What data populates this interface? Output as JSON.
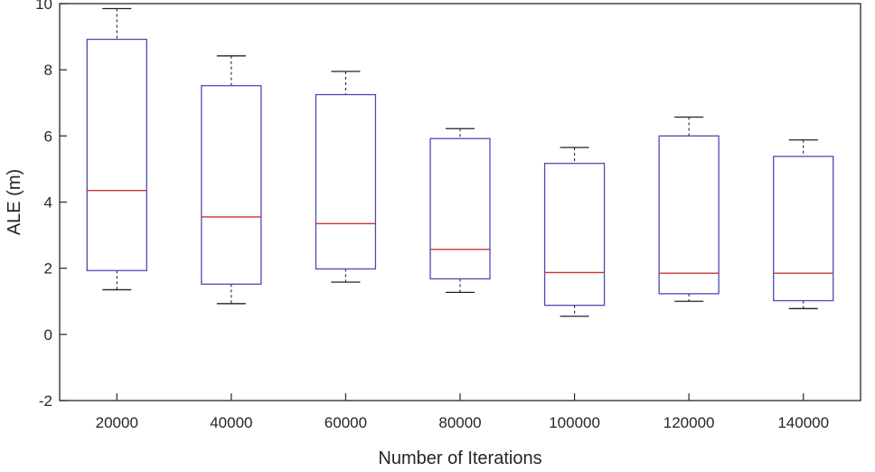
{
  "chart_data": {
    "type": "box",
    "xlabel": "Number of Iterations",
    "ylabel": "ALE (m)",
    "ylim": [
      -2,
      10
    ],
    "yticks": [
      -2,
      0,
      2,
      4,
      6,
      8,
      10
    ],
    "categories": [
      "20000",
      "40000",
      "60000",
      "80000",
      "100000",
      "120000",
      "140000"
    ],
    "boxes": [
      {
        "category": "20000",
        "min": 1.35,
        "q1": 1.93,
        "median": 4.35,
        "q3": 8.92,
        "max": 9.85
      },
      {
        "category": "40000",
        "min": 0.93,
        "q1": 1.52,
        "median": 3.55,
        "q3": 7.52,
        "max": 8.42
      },
      {
        "category": "60000",
        "min": 1.58,
        "q1": 1.98,
        "median": 3.35,
        "q3": 7.25,
        "max": 7.95
      },
      {
        "category": "80000",
        "min": 1.27,
        "q1": 1.68,
        "median": 2.57,
        "q3": 5.92,
        "max": 6.22
      },
      {
        "category": "100000",
        "min": 0.55,
        "q1": 0.88,
        "median": 1.87,
        "q3": 5.17,
        "max": 5.65
      },
      {
        "category": "120000",
        "min": 1.0,
        "q1": 1.23,
        "median": 1.85,
        "q3": 6.0,
        "max": 6.57
      },
      {
        "category": "140000",
        "min": 0.78,
        "q1": 1.02,
        "median": 1.85,
        "q3": 5.38,
        "max": 5.88
      }
    ],
    "grid": false,
    "legend": "none",
    "colors": {
      "box": "#4b4bb4",
      "median": "#cc3333",
      "whisker": "#222222",
      "axis": "#262626"
    }
  }
}
